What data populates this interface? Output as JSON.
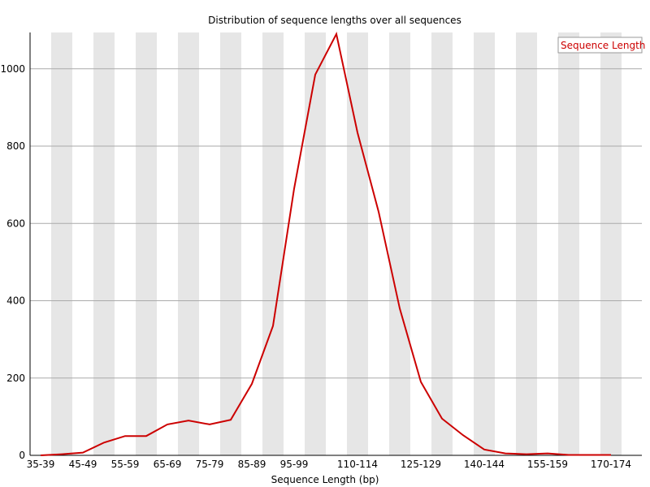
{
  "chart_data": {
    "type": "line",
    "title": "Distribution of sequence lengths over all sequences",
    "xlabel": "Sequence Length (bp)",
    "ylabel": "",
    "ylim": [
      0,
      1094
    ],
    "grid": "horizontal lines at y ticks; alternating vertical grey bands per category",
    "legend_position": "top-right",
    "x": [
      "35-39",
      "40-44",
      "45-49",
      "50-54",
      "55-59",
      "60-64",
      "65-69",
      "70-74",
      "75-79",
      "80-84",
      "85-89",
      "90-94",
      "95-99",
      "100-104",
      "105-109",
      "110-114",
      "115-119",
      "120-124",
      "125-129",
      "130-134",
      "135-139",
      "140-144",
      "145-149",
      "150-154",
      "155-159",
      "160-164",
      "165-169",
      "170-174"
    ],
    "x_tick_labels": [
      "35-39",
      "45-49",
      "55-59",
      "65-69",
      "75-79",
      "85-89",
      "95-99",
      "110-114",
      "125-129",
      "140-144",
      "155-159",
      "170-174"
    ],
    "y_ticks": [
      0,
      200,
      400,
      600,
      800,
      1000
    ],
    "series": [
      {
        "name": "Sequence Length",
        "color": "#cc0000",
        "values": [
          0,
          3,
          7,
          33,
          50,
          50,
          80,
          90,
          80,
          92,
          185,
          335,
          690,
          985,
          1090,
          835,
          630,
          380,
          190,
          95,
          52,
          15,
          5,
          3,
          5,
          1,
          1,
          1
        ]
      }
    ]
  }
}
